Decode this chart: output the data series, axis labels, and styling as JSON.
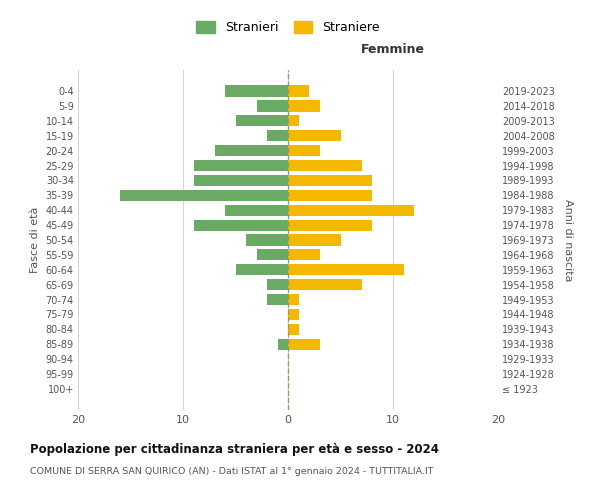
{
  "age_groups": [
    "100+",
    "95-99",
    "90-94",
    "85-89",
    "80-84",
    "75-79",
    "70-74",
    "65-69",
    "60-64",
    "55-59",
    "50-54",
    "45-49",
    "40-44",
    "35-39",
    "30-34",
    "25-29",
    "20-24",
    "15-19",
    "10-14",
    "5-9",
    "0-4"
  ],
  "birth_years": [
    "≤ 1923",
    "1924-1928",
    "1929-1933",
    "1934-1938",
    "1939-1943",
    "1944-1948",
    "1949-1953",
    "1954-1958",
    "1959-1963",
    "1964-1968",
    "1969-1973",
    "1974-1978",
    "1979-1983",
    "1984-1988",
    "1989-1993",
    "1994-1998",
    "1999-2003",
    "2004-2008",
    "2009-2013",
    "2014-2018",
    "2019-2023"
  ],
  "males": [
    0,
    0,
    0,
    1,
    0,
    0,
    2,
    2,
    5,
    3,
    4,
    9,
    6,
    16,
    9,
    9,
    7,
    2,
    5,
    3,
    6
  ],
  "females": [
    0,
    0,
    0,
    3,
    1,
    1,
    1,
    7,
    11,
    3,
    5,
    8,
    12,
    8,
    8,
    7,
    3,
    5,
    1,
    3,
    2
  ],
  "male_color": "#6aaa64",
  "female_color": "#f5b800",
  "background_color": "#ffffff",
  "grid_color": "#cccccc",
  "title": "Popolazione per cittadinanza straniera per età e sesso - 2024",
  "subtitle": "COMUNE DI SERRA SAN QUIRICO (AN) - Dati ISTAT al 1° gennaio 2024 - TUTTITALIA.IT",
  "xlabel_right": "Femmine",
  "ylabel_left": "Fasce di età",
  "ylabel_right": "Anni di nascita",
  "legend_male": "Stranieri",
  "legend_female": "Straniere",
  "xlim": 20
}
